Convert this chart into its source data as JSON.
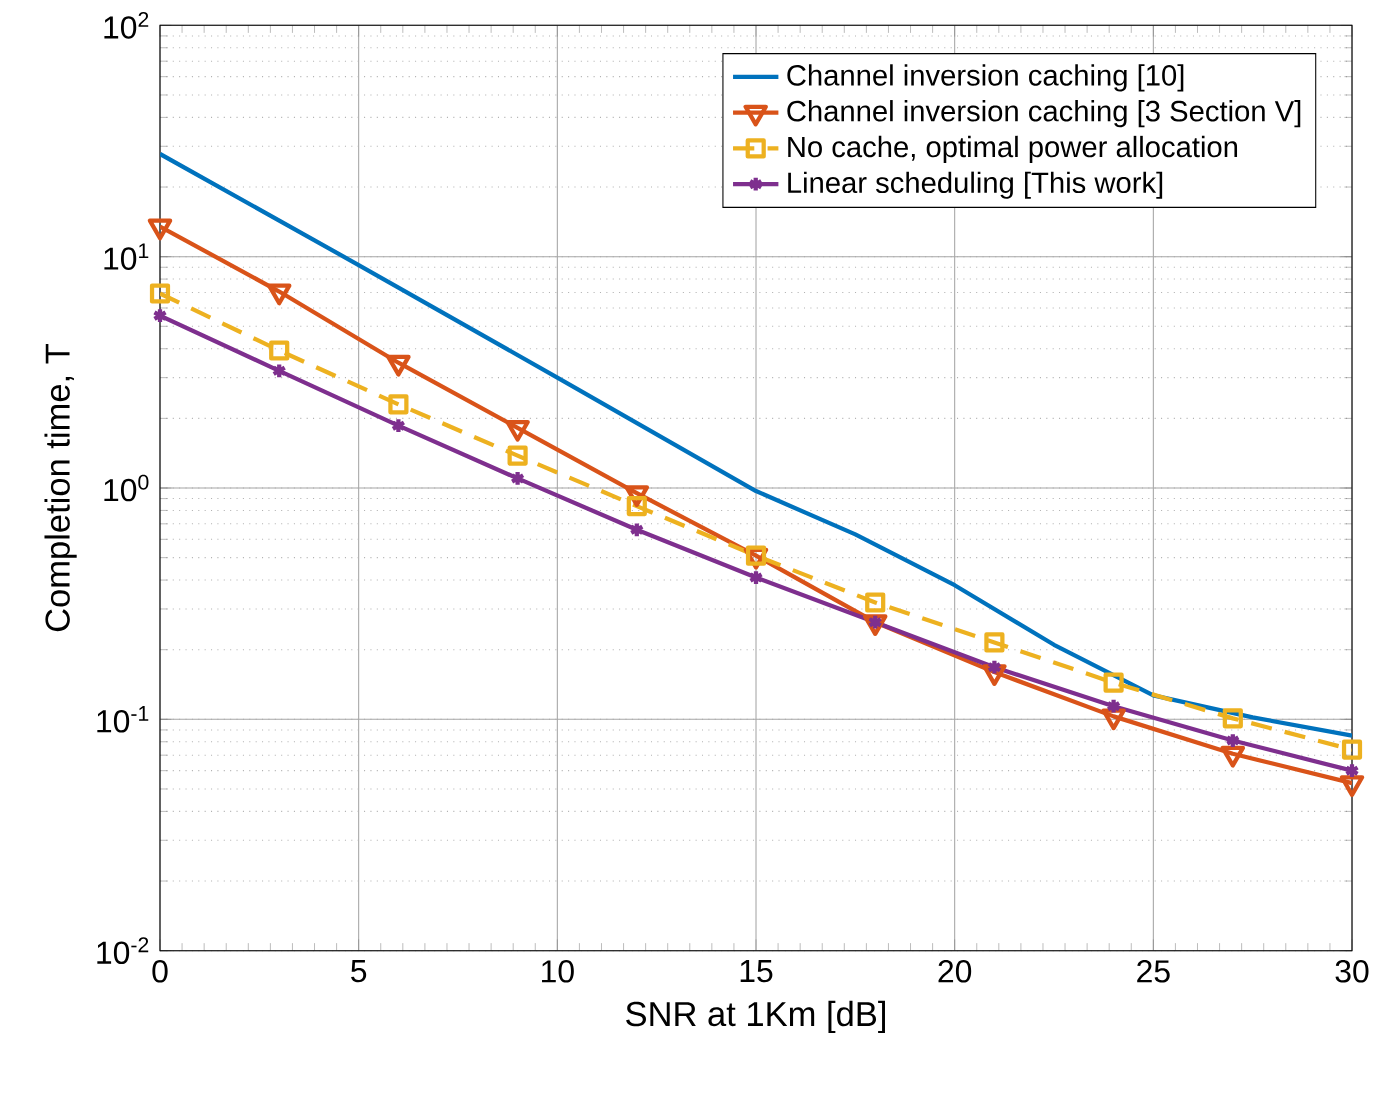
{
  "chart_data": {
    "type": "line",
    "xlabel": "SNR at 1Km [dB]",
    "ylabel": "Completion time, T",
    "log": "y",
    "grid": true,
    "legend": "top right",
    "xlim": [
      0,
      30
    ],
    "xticks": [
      0,
      5,
      10,
      15,
      20,
      25,
      30
    ],
    "ylim": [
      0.01,
      100
    ],
    "yticks": [
      {
        "value": 0.01,
        "label": "10$^{-2}$"
      },
      {
        "value": 0.1,
        "label": "10$^{-1}$"
      },
      {
        "value": 1,
        "label": "10$^{0}$"
      },
      {
        "value": 10,
        "label": "10$^{1}$"
      },
      {
        "value": 100,
        "label": "10$^{2}$"
      }
    ],
    "series": [
      {
        "name": "Channel inversion caching [10]",
        "color": "#0072bd",
        "marker": "none",
        "line_style": "solid",
        "x": [
          0,
          5,
          10,
          15,
          17.5,
          20,
          22.5,
          25,
          27.5,
          30
        ],
        "values": [
          27.8,
          9.2,
          3.0,
          0.97,
          0.63,
          0.38,
          0.21,
          0.127,
          0.102,
          0.085
        ]
      },
      {
        "name": "Channel inversion caching [3 Section V]",
        "color": "#d95319",
        "marker": "triangle",
        "line_style": "solid",
        "x": [
          0,
          3,
          6,
          9,
          12,
          15,
          18,
          21,
          24,
          27,
          30
        ],
        "values": [
          13.5,
          7.07,
          3.48,
          1.82,
          0.95,
          0.51,
          0.263,
          0.16,
          0.103,
          0.071,
          0.053
        ]
      },
      {
        "name": "No cache, optimal power allocation",
        "color": "#edb120",
        "marker": "square",
        "line_style": "dashed",
        "x": [
          0,
          3,
          6,
          9,
          12,
          15,
          18,
          21,
          24,
          27,
          30
        ],
        "values": [
          6.93,
          3.93,
          2.3,
          1.38,
          0.835,
          0.51,
          0.32,
          0.215,
          0.144,
          0.101,
          0.074
        ]
      },
      {
        "name": "Linear scheduling [This work]",
        "color": "#7e2f8e",
        "marker": "cross",
        "line_style": "solid",
        "x": [
          0,
          3,
          6,
          9,
          12,
          15,
          18,
          21,
          24,
          27,
          30
        ],
        "values": [
          5.56,
          3.21,
          1.86,
          1.1,
          0.66,
          0.41,
          0.263,
          0.168,
          0.114,
          0.081,
          0.06
        ]
      }
    ]
  }
}
